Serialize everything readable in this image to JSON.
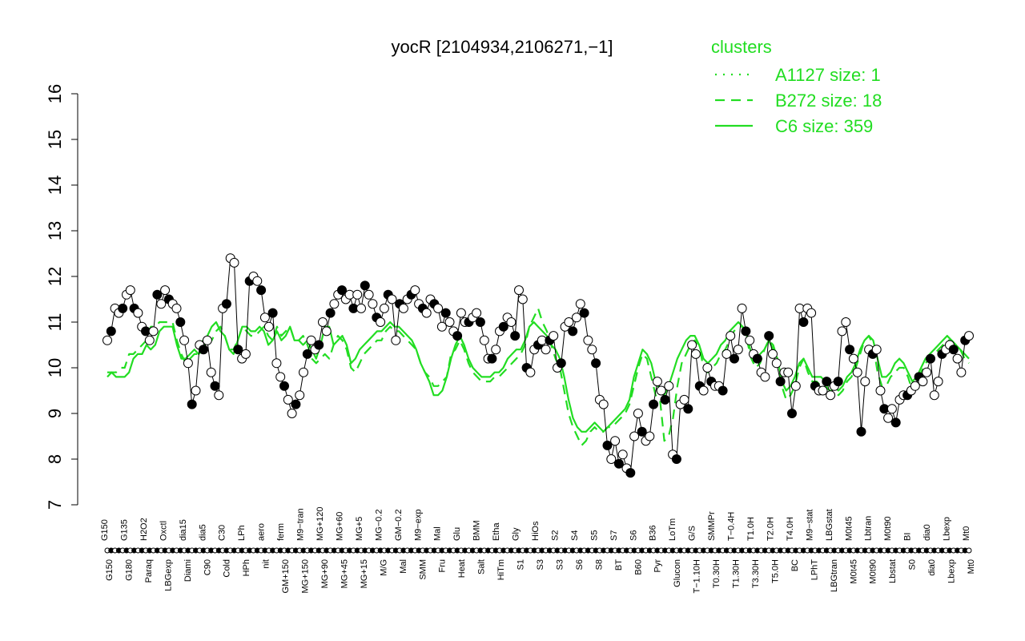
{
  "chart_data": {
    "type": "line",
    "title": "yocR [2104934,2106271,−1]",
    "ylim": [
      7,
      16
    ],
    "yticks": [
      7,
      8,
      9,
      10,
      11,
      12,
      13,
      14,
      15,
      16
    ],
    "x_labels_top": [
      "G150",
      "G135",
      "H2O2",
      "Oxctl",
      "dia15",
      "dia5",
      "C30",
      "LPh",
      "aero",
      "ferm",
      "M9−tran",
      "MG+120",
      "MG+60",
      "MG+5",
      "MG−0.2",
      "GM−0.2",
      "M9−exp",
      "Mal",
      "Glu",
      "BMM",
      "Etha",
      "Gly",
      "HiOs",
      "S2",
      "S4",
      "S5",
      "S7",
      "S6",
      "B36",
      "LoTm",
      "G/S",
      "SMMPr",
      "T−0.4H",
      "T1.0H",
      "T2.0H",
      "T4.0H",
      "M9−stat",
      "LBGstat",
      "M0t45",
      "Lbtran",
      "M0t90",
      "BI",
      "dia0",
      "Lbexp",
      "Mt0"
    ],
    "x_labels_bottom": [
      "G150",
      "G180",
      "Paraq",
      "LBGexp",
      "Diami",
      "C90",
      "Cold",
      "HPh",
      "nit",
      "GM+150",
      "MG+150",
      "MG+90",
      "MG+45",
      "MG+15",
      "M/G",
      "Mal",
      "SMM",
      "Fru",
      "Heat",
      "Salt",
      "HiTm",
      "S1",
      "S3",
      "S3",
      "S6",
      "S8",
      "BT",
      "B60",
      "Pyr",
      "Glucon",
      "T−1.10H",
      "T0.30H",
      "T1.30H",
      "T3.30H",
      "T5.0H",
      "BC",
      "LPhT",
      "LBGtran",
      "M0t45",
      "M0t90",
      "Lbstat",
      "S0",
      "dia0",
      "Lbexp",
      "Mt0"
    ],
    "series": [
      {
        "name": "A1127 size: 1",
        "style": "dotted"
      },
      {
        "name": "B272 size: 18",
        "style": "dashed",
        "values": [
          9.9,
          9.9,
          9.9,
          10.0,
          10.0,
          10.3,
          10.3,
          10.4,
          10.5,
          10.6,
          10.9,
          10.9,
          11.0,
          11.0,
          11.0,
          11.0,
          10.6,
          10.3,
          10.1,
          10.2,
          10.3,
          10.3,
          10.6,
          10.5,
          10.6,
          10.8,
          10.9,
          10.7,
          10.4,
          10.4,
          10.6,
          10.9,
          10.8,
          10.7,
          10.7,
          10.8,
          10.9,
          10.7,
          10.6,
          10.9,
          10.7,
          10.8,
          10.9,
          10.6,
          10.6,
          10.7,
          10.5,
          10.2,
          10.1,
          10.2,
          10.3,
          10.2,
          10.5,
          10.7,
          10.6,
          10.4,
          10.0,
          9.9,
          10.1,
          10.3,
          10.4,
          10.5,
          10.6,
          10.6,
          10.8,
          10.9,
          10.8,
          10.8,
          10.7,
          10.6,
          10.5,
          10.4,
          10.1,
          9.9,
          9.8,
          9.6,
          9.6,
          9.7,
          9.8,
          10.3,
          10.4,
          10.6,
          10.4,
          10.1,
          9.9,
          9.8,
          9.7,
          9.7,
          9.7,
          9.8,
          9.8,
          9.9,
          10.0,
          10.1,
          10.2,
          10.3,
          10.5,
          10.9,
          11.1,
          11.3,
          11.0,
          10.8,
          10.5,
          10.2,
          10.0,
          9.5,
          9.0,
          8.7,
          8.5,
          8.3,
          8.4,
          8.6,
          8.7,
          8.6,
          8.6,
          8.7,
          8.7,
          8.8,
          8.9,
          9.0,
          9.2,
          9.6,
          10.0,
          10.3,
          10.2,
          9.8,
          9.4,
          9.3,
          8.4,
          8.5,
          8.9,
          9.6,
          10.1,
          10.3,
          10.5,
          10.6,
          10.5,
          10.0,
          9.9,
          10.0,
          10.1,
          10.3,
          10.4,
          10.6,
          10.8,
          10.9,
          10.9,
          10.6,
          10.2,
          10.0,
          10.1,
          10.4,
          10.6,
          10.5,
          10.2,
          9.6,
          9.3,
          9.4,
          9.6,
          10.0,
          10.2,
          9.9,
          9.7,
          9.7,
          9.6,
          9.6,
          9.5,
          9.5,
          9.4,
          9.5,
          9.7,
          9.8,
          10.0,
          10.3,
          10.6,
          10.7,
          10.5,
          9.9,
          9.6,
          9.6,
          9.8,
          9.9,
          10.0,
          10.0,
          9.8,
          9.5,
          9.6,
          9.9,
          10.1,
          10.2,
          10.3,
          10.4,
          10.5,
          10.6,
          10.6,
          10.5,
          10.4,
          10.2,
          10.1
        ]
      },
      {
        "name": "C6 size: 359",
        "style": "solid",
        "values": [
          9.8,
          9.9,
          9.8,
          9.8,
          9.8,
          9.9,
          10.2,
          10.3,
          10.3,
          10.5,
          10.4,
          10.5,
          10.8,
          10.9,
          10.9,
          10.9,
          10.5,
          10.2,
          10.2,
          10.3,
          10.4,
          10.3,
          10.4,
          10.7,
          10.9,
          11.0,
          10.8,
          10.7,
          10.4,
          10.3,
          10.6,
          10.9,
          10.9,
          10.8,
          10.8,
          10.9,
          10.8,
          10.5,
          10.6,
          10.8,
          10.6,
          10.7,
          10.9,
          10.6,
          10.6,
          10.5,
          10.6,
          10.4,
          10.2,
          10.5,
          10.9,
          10.9,
          10.5,
          10.6,
          10.7,
          10.5,
          10.1,
          10.2,
          10.4,
          10.5,
          10.6,
          10.7,
          10.8,
          10.8,
          10.9,
          11.0,
          10.9,
          10.9,
          10.8,
          10.7,
          10.6,
          10.4,
          10.1,
          9.9,
          9.7,
          9.4,
          9.4,
          9.5,
          9.8,
          10.2,
          10.5,
          10.7,
          10.5,
          10.2,
          10.0,
          9.9,
          9.8,
          9.8,
          9.8,
          9.9,
          9.9,
          10.0,
          10.2,
          10.3,
          10.4,
          10.4,
          10.6,
          10.9,
          11.0,
          10.9,
          10.8,
          10.7,
          10.5,
          10.4,
          10.2,
          9.8,
          9.3,
          8.9,
          8.7,
          8.6,
          8.6,
          8.7,
          8.8,
          8.7,
          8.6,
          8.7,
          8.8,
          8.9,
          9.0,
          9.1,
          9.3,
          9.8,
          10.1,
          10.4,
          10.3,
          10.1,
          9.7,
          9.5,
          9.4,
          9.6,
          9.9,
          10.2,
          10.4,
          10.6,
          10.7,
          10.7,
          10.5,
          10.2,
          10.1,
          10.2,
          10.3,
          10.5,
          10.6,
          10.8,
          10.9,
          11.0,
          10.9,
          10.7,
          10.3,
          10.2,
          10.3,
          10.4,
          10.6,
          10.4,
          10.2,
          9.7,
          9.5,
          9.6,
          9.8,
          10.1,
          10.2,
          10.0,
          9.8,
          9.8,
          9.8,
          9.7,
          9.6,
          9.6,
          9.5,
          9.6,
          9.8,
          9.9,
          10.1,
          10.4,
          10.6,
          10.7,
          10.6,
          10.2,
          9.8,
          9.8,
          9.9,
          10.1,
          10.2,
          10.1,
          9.9,
          9.7,
          9.8,
          10.0,
          10.2,
          10.3,
          10.4,
          10.5,
          10.6,
          10.7,
          10.6,
          10.5,
          10.4,
          10.3,
          10.2
        ]
      }
    ],
    "points": [
      10.6,
      10.8,
      11.3,
      11.2,
      11.3,
      11.6,
      11.7,
      11.3,
      11.2,
      10.9,
      10.8,
      10.6,
      10.8,
      11.6,
      11.4,
      11.7,
      11.5,
      11.4,
      11.3,
      11.0,
      10.6,
      10.1,
      9.2,
      9.5,
      10.5,
      10.4,
      10.6,
      9.9,
      9.6,
      9.4,
      11.3,
      11.4,
      12.4,
      12.3,
      10.4,
      10.2,
      10.3,
      11.9,
      12.0,
      11.9,
      11.7,
      11.1,
      10.9,
      11.2,
      10.1,
      9.8,
      9.6,
      9.3,
      9.0,
      9.2,
      9.4,
      9.9,
      10.3,
      10.6,
      10.4,
      10.5,
      11.0,
      10.8,
      11.2,
      11.4,
      11.6,
      11.7,
      11.5,
      11.6,
      11.3,
      11.6,
      11.3,
      11.8,
      11.6,
      11.4,
      11.1,
      11.0,
      11.3,
      11.6,
      11.5,
      10.6,
      11.4,
      11.3,
      11.5,
      11.6,
      11.7,
      11.4,
      11.3,
      11.2,
      11.5,
      11.4,
      11.3,
      10.9,
      11.2,
      11.0,
      10.8,
      10.7,
      11.2,
      11.0,
      11.0,
      11.1,
      11.2,
      11.0,
      10.6,
      10.2,
      10.2,
      10.4,
      10.8,
      10.9,
      11.1,
      11.0,
      10.7,
      11.7,
      11.5,
      10.0,
      9.9,
      10.4,
      10.5,
      10.6,
      10.4,
      10.6,
      10.7,
      10.0,
      10.1,
      10.9,
      11.0,
      10.8,
      11.1,
      11.4,
      11.2,
      10.6,
      10.4,
      10.1,
      9.3,
      9.2,
      8.3,
      8.0,
      8.4,
      7.9,
      8.1,
      7.8,
      7.7,
      8.5,
      9.0,
      8.6,
      8.4,
      8.5,
      9.2,
      9.7,
      9.5,
      9.3,
      9.6,
      8.1,
      8.0,
      9.2,
      9.3,
      9.1,
      10.5,
      10.3,
      9.6,
      9.5,
      10.0,
      9.7,
      9.6,
      9.6,
      9.5,
      10.3,
      10.7,
      10.2,
      10.4,
      11.3,
      10.8,
      10.6,
      10.3,
      10.2,
      9.9,
      9.8,
      10.7,
      10.3,
      10.1,
      9.7,
      9.9,
      9.9,
      9.0,
      9.6,
      11.3,
      11.0,
      11.3,
      11.2,
      9.6,
      9.5,
      9.5,
      9.7,
      9.4,
      9.6,
      9.7,
      10.8,
      11.0,
      10.4,
      10.2,
      9.9,
      8.6,
      9.7,
      10.4,
      10.3,
      10.4,
      9.5,
      9.1,
      8.9,
      9.1,
      8.8,
      9.3,
      9.4,
      9.4,
      9.5,
      9.6,
      9.8,
      9.7,
      9.9,
      10.2,
      9.4,
      9.7,
      10.3,
      10.4,
      10.5,
      10.4,
      10.2,
      9.9,
      10.6,
      10.7
    ]
  }
}
